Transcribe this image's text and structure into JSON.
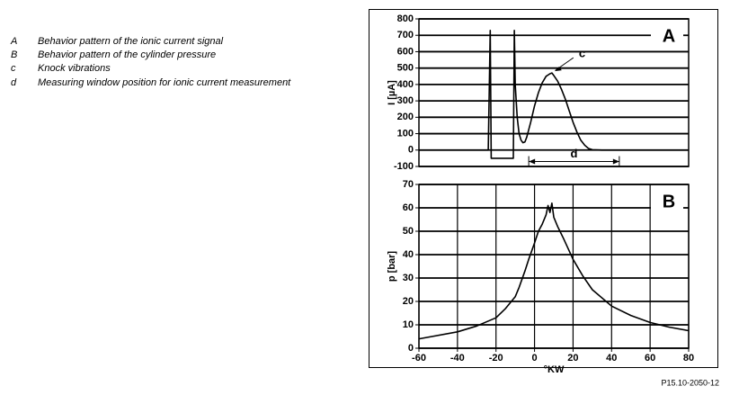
{
  "legend": [
    {
      "key": "A",
      "text": "Behavior pattern of the ionic current signal"
    },
    {
      "key": "B",
      "text": "Behavior pattern of the cylinder pressure"
    },
    {
      "key": "c",
      "text": "Knock vibrations"
    },
    {
      "key": "d",
      "text": "Measuring window position for ionic current measurement"
    }
  ],
  "figure_id": "P15.10-2050-12",
  "chart_data": [
    {
      "type": "line",
      "panel_label": "A",
      "ylabel": "I [µA]",
      "color": "#000000",
      "xlim": [
        -60,
        80
      ],
      "ylim": [
        -100,
        800
      ],
      "yticks": [
        -100,
        0,
        100,
        200,
        300,
        400,
        500,
        600,
        700,
        800
      ],
      "grid": "y",
      "x": [
        -60,
        -24,
        -23,
        -22.5,
        -11,
        -10.5,
        -10,
        -9,
        -8,
        -7,
        -6,
        -5,
        -4,
        -2,
        0,
        2,
        4,
        6,
        8,
        9,
        10,
        12,
        14,
        16,
        18,
        20,
        22,
        24,
        26,
        28,
        30,
        35,
        80
      ],
      "values": [
        0,
        0,
        730,
        -50,
        -50,
        730,
        400,
        200,
        100,
        60,
        45,
        50,
        80,
        170,
        270,
        350,
        410,
        450,
        465,
        470,
        455,
        420,
        370,
        310,
        240,
        170,
        110,
        60,
        30,
        10,
        2,
        0,
        0
      ],
      "annotations": [
        {
          "text": "c",
          "x": 9,
          "y": 470
        },
        {
          "text": "d",
          "x": [
            -3,
            44
          ],
          "y": -70
        }
      ]
    },
    {
      "type": "line",
      "panel_label": "B",
      "ylabel": "p [bar]",
      "xlabel": "°KW",
      "color": "#000000",
      "xlim": [
        -60,
        80
      ],
      "ylim": [
        0,
        70
      ],
      "xticks": [
        -60,
        -40,
        -20,
        0,
        20,
        40,
        60,
        80
      ],
      "yticks": [
        0,
        10,
        20,
        30,
        40,
        50,
        60,
        70
      ],
      "grid": "xy",
      "x": [
        -60,
        -40,
        -30,
        -20,
        -15,
        -10,
        -8,
        -5,
        -3,
        0,
        2,
        4,
        6,
        7,
        8,
        9,
        10,
        12,
        15,
        20,
        25,
        30,
        40,
        50,
        60,
        70,
        80
      ],
      "values": [
        4,
        7,
        9.5,
        13,
        17,
        22,
        26,
        33,
        38,
        45,
        50,
        53,
        57,
        61,
        58,
        62,
        56,
        52,
        47,
        38,
        31,
        25,
        18,
        14,
        11,
        9,
        7.5
      ]
    }
  ]
}
